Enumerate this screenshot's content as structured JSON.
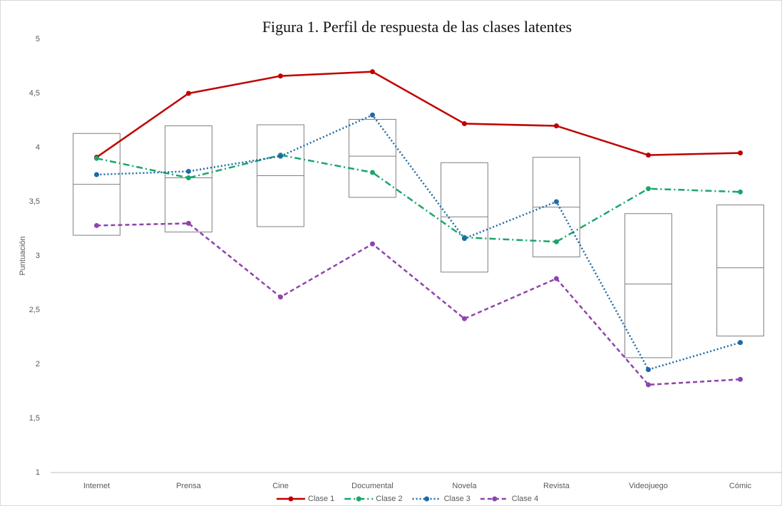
{
  "chart_data": {
    "type": "line",
    "title": "Figura 1. Perfil de respuesta de las clases latentes",
    "ylabel": "Puntuación",
    "categories": [
      "Internet",
      "Prensa",
      "Cine",
      "Documental",
      "Novela",
      "Revista",
      "Videojuego",
      "Cómic"
    ],
    "boxes": [
      {
        "top": 4.13,
        "median": 3.66,
        "bottom": 3.19
      },
      {
        "top": 4.2,
        "median": 3.72,
        "bottom": 3.22
      },
      {
        "top": 4.21,
        "median": 3.74,
        "bottom": 3.27
      },
      {
        "top": 4.26,
        "median": 3.92,
        "bottom": 3.54
      },
      {
        "top": 3.86,
        "median": 3.36,
        "bottom": 2.85
      },
      {
        "top": 3.91,
        "median": 3.45,
        "bottom": 2.99
      },
      {
        "top": 3.39,
        "median": 2.74,
        "bottom": 2.06
      },
      {
        "top": 3.47,
        "median": 2.89,
        "bottom": 2.26
      }
    ],
    "series": [
      {
        "name": "Clase 1",
        "color": "#c00000",
        "dash": "solid",
        "values": [
          3.91,
          4.5,
          4.66,
          4.7,
          4.22,
          4.2,
          3.93,
          3.95
        ]
      },
      {
        "name": "Clase 2",
        "color": "#1aa66b",
        "dash": "dashdot",
        "values": [
          3.9,
          3.72,
          3.93,
          3.77,
          3.17,
          3.13,
          3.62,
          3.59
        ]
      },
      {
        "name": "Clase 3",
        "color": "#1f6aa5",
        "dash": "dot",
        "values": [
          3.75,
          3.78,
          3.92,
          4.3,
          3.16,
          3.5,
          1.95,
          2.2
        ]
      },
      {
        "name": "Clase 4",
        "color": "#8e44ad",
        "dash": "dash",
        "values": [
          3.28,
          3.3,
          2.62,
          3.11,
          2.42,
          2.79,
          1.81,
          1.86
        ]
      }
    ],
    "ylim": [
      1,
      5
    ],
    "yticks": [
      1,
      {
        "value": 1.5,
        "label": "1,5"
      },
      2,
      {
        "value": 2.5,
        "label": "2,5"
      },
      3,
      {
        "value": 3.5,
        "label": "3,5"
      },
      4,
      {
        "value": 4.5,
        "label": "4,5"
      },
      5
    ],
    "legend": "bottom"
  }
}
